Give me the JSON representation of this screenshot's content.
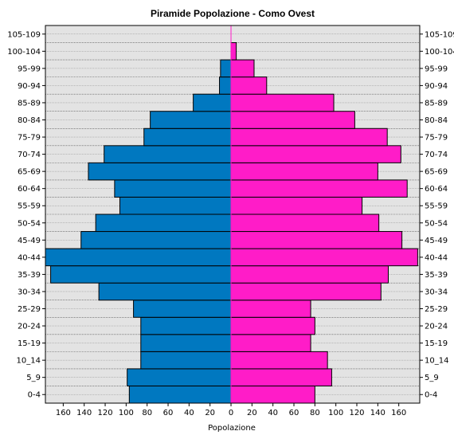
{
  "chart_data": {
    "type": "bar",
    "orientation": "horizontal-pyramid",
    "title": "Piramide Popolazione  - Como Ovest",
    "xlabel": "Popolazione",
    "ylabel": "",
    "xlim": [
      -177,
      180
    ],
    "x_ticks": [
      -160,
      -140,
      -120,
      -100,
      -80,
      -60,
      -40,
      -20,
      0,
      20,
      40,
      60,
      80,
      100,
      120,
      140,
      160
    ],
    "x_tick_labels": [
      "160",
      "140",
      "120",
      "100",
      "80",
      "60",
      "40",
      "20",
      "0",
      "20",
      "40",
      "60",
      "80",
      "100",
      "120",
      "140",
      "160"
    ],
    "categories": [
      "0-4",
      "5_9",
      "10_14",
      "15-19",
      "20-24",
      "25-29",
      "30-34",
      "35-39",
      "40-44",
      "45-49",
      "50-54",
      "55-59",
      "60-64",
      "65-69",
      "70-74",
      "75-79",
      "80-84",
      "85-89",
      "90-94",
      "95-99",
      "100-104",
      "105-109"
    ],
    "grid": true,
    "series": [
      {
        "color": "#0078C0",
        "side": "left",
        "values": [
          97,
          99,
          86,
          86,
          86,
          93,
          126,
          172,
          177,
          143,
          129,
          106,
          111,
          136,
          121,
          83,
          77,
          36,
          11,
          10,
          0,
          0
        ]
      },
      {
        "color": "#FF1CC8",
        "side": "right",
        "values": [
          80,
          96,
          92,
          76,
          80,
          76,
          143,
          150,
          178,
          163,
          141,
          125,
          168,
          140,
          162,
          149,
          118,
          98,
          34,
          22,
          5,
          0
        ]
      }
    ]
  }
}
